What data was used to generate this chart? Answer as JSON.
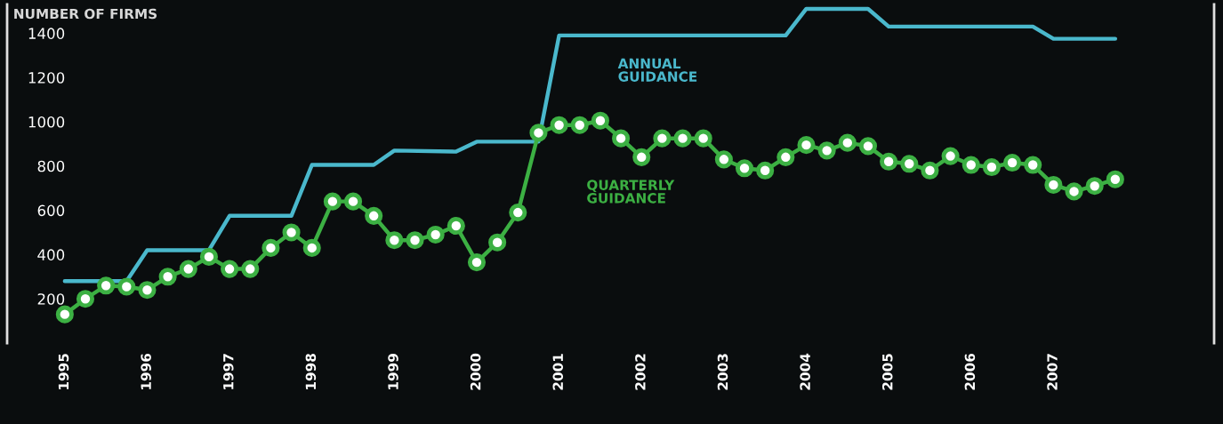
{
  "chart_data": {
    "type": "line",
    "ylabel": "NUMBER OF FIRMS",
    "xlim": [
      1994.3,
      2008.95
    ],
    "xticks": [
      {
        "value": 1995,
        "label": "1995"
      },
      {
        "value": 1996,
        "label": "1996"
      },
      {
        "value": 1997,
        "label": "1997"
      },
      {
        "value": 1998,
        "label": "1998"
      },
      {
        "value": 1999,
        "label": "1999"
      },
      {
        "value": 2000,
        "label": "2000"
      },
      {
        "value": 2001,
        "label": "2001"
      },
      {
        "value": 2002,
        "label": "2002"
      },
      {
        "value": 2003,
        "label": "2003"
      },
      {
        "value": 2004,
        "label": "2004"
      },
      {
        "value": 2005,
        "label": "2005"
      },
      {
        "value": 2006,
        "label": "2006"
      },
      {
        "value": 2007,
        "label": "2007"
      }
    ],
    "ylim": [
      0,
      1530
    ],
    "yticks": [
      200,
      400,
      600,
      800,
      1000,
      1200,
      1400
    ],
    "grid": false,
    "legend": false,
    "series": [
      {
        "name": "ANNUAL\nGUIDANCE",
        "color": "#4ab8cc",
        "marker": "none",
        "x": [
          1995,
          1995.75,
          1996,
          1996.75,
          1997,
          1997.75,
          1998,
          1998.75,
          1999,
          1999.75,
          2000,
          2000.75,
          2001,
          2003.75,
          2004,
          2004.75,
          2005,
          2006.75,
          2007,
          2007.75
        ],
        "values": [
          280,
          280,
          420,
          420,
          575,
          575,
          805,
          805,
          870,
          865,
          910,
          910,
          1390,
          1390,
          1510,
          1510,
          1430,
          1430,
          1375,
          1375
        ]
      },
      {
        "name": "QUARTERLY\nGUIDANCE",
        "color": "#3cb043",
        "marker": "circle",
        "x": [
          1995,
          1995.25,
          1995.5,
          1995.75,
          1996,
          1996.25,
          1996.5,
          1996.75,
          1997,
          1997.25,
          1997.5,
          1997.75,
          1998,
          1998.25,
          1998.5,
          1998.75,
          1999,
          1999.25,
          1999.5,
          1999.75,
          2000,
          2000.25,
          2000.5,
          2000.75,
          2001,
          2001.25,
          2001.5,
          2001.75,
          2002,
          2002.25,
          2002.5,
          2002.75,
          2003,
          2003.25,
          2003.5,
          2003.75,
          2004,
          2004.25,
          2004.5,
          2004.75,
          2005,
          2005.25,
          2005.5,
          2005.75,
          2006,
          2006.25,
          2006.5,
          2006.75,
          2007,
          2007.25,
          2007.5,
          2007.75
        ],
        "values": [
          130,
          200,
          260,
          255,
          240,
          300,
          335,
          390,
          335,
          335,
          430,
          500,
          430,
          640,
          640,
          575,
          465,
          465,
          490,
          530,
          365,
          455,
          590,
          950,
          985,
          985,
          1005,
          925,
          840,
          925,
          925,
          925,
          830,
          790,
          780,
          840,
          895,
          870,
          905,
          890,
          820,
          810,
          780,
          845,
          805,
          795,
          815,
          805,
          715,
          685,
          710,
          740
        ]
      }
    ]
  }
}
